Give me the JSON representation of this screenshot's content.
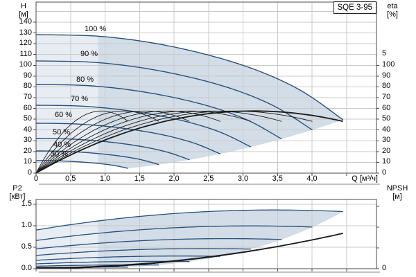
{
  "panel": {
    "model_badge": "SQE 3-95"
  },
  "colors": {
    "curve_blue": "#27517e",
    "curve_black": "#1a1a1a",
    "fill_light": "#e8edf3",
    "fill_dark": "#d3dde7",
    "grid": "#c9c9c9",
    "axis": "#4a4a4a",
    "shadow": "#c2c2c2"
  },
  "chart_data": [
    {
      "type": "line",
      "id": "qh-efficiency-chart",
      "title": "SQE 3-95",
      "xlabel": "Q [м³/ч]",
      "ylabel_left": [
        "H",
        "[м]"
      ],
      "ylabel_right": [
        "eta",
        "[%]"
      ],
      "xlim": [
        0,
        4.93
      ],
      "ylim_left": [
        0,
        158
      ],
      "ylim_right": [
        0,
        158
      ],
      "grid": true,
      "x_ticks": {
        "values": [
          0,
          0.5,
          1,
          1.5,
          2,
          2.5,
          3,
          3.5,
          4
        ],
        "labels": [
          "0",
          "0,5",
          "1,0",
          "1,5",
          "2,0",
          "2,5",
          "3,0",
          "3,5",
          "4,0"
        ]
      },
      "x_grid": {
        "min": 0.5,
        "max": 4.5,
        "step": 0.5
      },
      "y_left_ticks": {
        "values": [
          0,
          10,
          20,
          30,
          40,
          50,
          60,
          70,
          80,
          90,
          100,
          110,
          120,
          130,
          140
        ],
        "labels": [
          "0",
          "10",
          "20",
          "30",
          "40",
          "50",
          "60",
          "70",
          "80",
          "90",
          "100",
          "110",
          "120",
          "130",
          "140"
        ]
      },
      "y_left_grid": {
        "min": 10,
        "max": 150,
        "step": 10
      },
      "y_right_ticks": {
        "values": [
          0,
          10,
          20,
          30,
          40,
          50,
          60,
          70,
          80,
          90,
          100
        ],
        "labels": [
          "0",
          "10",
          "20",
          "30",
          "40",
          "50",
          "60",
          "70",
          "80",
          "90",
          "100"
        ]
      },
      "h_curve_points_100pct": [
        [
          0,
          128.5
        ],
        [
          1,
          126.5
        ],
        [
          2,
          117
        ],
        [
          3,
          100
        ],
        [
          3.8,
          78
        ],
        [
          4.45,
          49.5
        ]
      ],
      "eta_poly_100pct": [
        0,
        36.5,
        -5.78
      ],
      "eta_max_pct": 57.5,
      "eta_at_q_max_pct": 48,
      "min_flow_boundary_q_m3h": 0.9,
      "speed_curves": [
        {
          "percent": 100,
          "label": "100 %",
          "shutoff_head_m": 128.5,
          "q_max_m3h": 4.45,
          "head_at_q_max_m": 49.5
        },
        {
          "percent": 90,
          "label": "90 %",
          "shutoff_head_m": 104.1,
          "q_max_m3h": 4.01,
          "head_at_q_max_m": 40.1
        },
        {
          "percent": 80,
          "label": "80 %",
          "shutoff_head_m": 82.2,
          "q_max_m3h": 3.56,
          "head_at_q_max_m": 31.7
        },
        {
          "percent": 70,
          "label": "70 %",
          "shutoff_head_m": 63.0,
          "q_max_m3h": 3.12,
          "head_at_q_max_m": 24.3
        },
        {
          "percent": 60,
          "label": "60 %",
          "shutoff_head_m": 46.3,
          "q_max_m3h": 2.67,
          "head_at_q_max_m": 17.8
        },
        {
          "percent": 50,
          "label": "50 %",
          "shutoff_head_m": 32.1,
          "q_max_m3h": 2.23,
          "head_at_q_max_m": 12.4
        },
        {
          "percent": 40,
          "label": "40 %",
          "shutoff_head_m": 20.6,
          "q_max_m3h": 1.78,
          "head_at_q_max_m": 7.9
        },
        {
          "percent": 30,
          "label": "30 %",
          "shutoff_head_m": 11.6,
          "q_max_m3h": 1.34,
          "head_at_q_max_m": 4.5
        }
      ]
    },
    {
      "type": "line",
      "id": "p2-npsh-chart",
      "ylabel_left": [
        "P2",
        "[кВт]"
      ],
      "ylabel_right": [
        "NPSH",
        "[м]"
      ],
      "xlim": [
        0,
        4.93
      ],
      "ylim_left": [
        0,
        1.61
      ],
      "ylim_right": [
        0,
        16.1
      ],
      "grid": true,
      "x_grid": {
        "min": 0.5,
        "max": 4.5,
        "step": 0.5
      },
      "y_left_ticks": {
        "values": [
          0,
          0.5,
          1,
          1.5
        ],
        "labels": [
          "0.0",
          "0.5",
          "1.0",
          "1.5"
        ]
      },
      "y_left_grid": {
        "min": 0.5,
        "max": 1.5,
        "step": 0.5
      },
      "y_right_ticks": {
        "values": [
          0,
          5,
          10,
          15
        ],
        "labels": [
          "0",
          "5",
          "10",
          "15"
        ]
      },
      "p2_poly_100pct": [
        0.9,
        0.27,
        -0.039
      ],
      "npsh_poly_100pct": [
        0.2,
        0,
        0.42
      ],
      "power_curves": [
        {
          "percent": 100,
          "p2_at_q0_kw": 0.9,
          "q_max_m3h": 4.45,
          "p2_at_q_max_kw": 1.33
        },
        {
          "percent": 90,
          "p2_at_q0_kw": 0.66,
          "q_max_m3h": 4.01,
          "p2_at_q_max_kw": 0.97
        },
        {
          "percent": 80,
          "p2_at_q0_kw": 0.46,
          "q_max_m3h": 3.56,
          "p2_at_q_max_kw": 0.68
        },
        {
          "percent": 70,
          "p2_at_q0_kw": 0.31,
          "q_max_m3h": 3.12,
          "p2_at_q_max_kw": 0.46
        },
        {
          "percent": 60,
          "p2_at_q0_kw": 0.19,
          "q_max_m3h": 2.67,
          "p2_at_q_max_kw": 0.29
        },
        {
          "percent": 50,
          "p2_at_q0_kw": 0.11,
          "q_max_m3h": 2.23,
          "p2_at_q_max_kw": 0.17
        },
        {
          "percent": 40,
          "p2_at_q0_kw": 0.06,
          "q_max_m3h": 1.78,
          "p2_at_q_max_kw": 0.09
        },
        {
          "percent": 30,
          "p2_at_q0_kw": 0.02,
          "q_max_m3h": 1.34,
          "p2_at_q_max_kw": 0.04
        }
      ],
      "npsh_curve": {
        "npsh_at_q0_m": 0.2,
        "q_max_m3h": 4.45,
        "npsh_at_q_max_m": 8.5
      },
      "min_flow_boundary_q_m3h": 0.9
    }
  ]
}
